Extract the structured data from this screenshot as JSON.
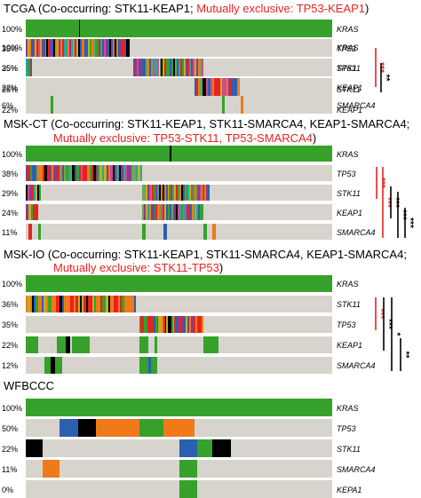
{
  "colors": {
    "background_cell": "#d6d4cc",
    "green": "#36a12b",
    "red": "#e8231f",
    "palette": [
      "#36a12b",
      "#e8231f",
      "#f07a1a",
      "#2d5fb0",
      "#000000",
      "#8b3b8b",
      "#c0b020",
      "#6aa84f"
    ]
  },
  "panels": [
    {
      "id": "tcga",
      "title_black": "TCGA (Co-occurring: STK11-KEAP1; ",
      "title_red": "Mutually exclusive: TP53-KEAP1",
      "title_tail": ")",
      "title_line2_red": "",
      "title_line2_tail": "",
      "rows": [
        {
          "pct": "100%",
          "gene": "KRAS"
        },
        {
          "pct": "35%",
          "gene": "TP53"
        },
        {
          "pct": "25%",
          "gene": "STK11"
        },
        {
          "pct": "22%",
          "gene": "KEAP1"
        },
        {
          "pct": "6%",
          "gene": "SMARCA4"
        }
      ],
      "significance": [
        {
          "label": "***",
          "color": "red",
          "from_row": 1,
          "to_row": 3
        },
        {
          "label": "**",
          "color": "black",
          "from_row": 2,
          "to_row": 3
        }
      ]
    },
    {
      "id": "msk-ct",
      "title_black": "MSK-CT (Co-occurring: STK11-KEAP1, STK11-SMARCA4, KEAP1-SMARCA4;",
      "title_red": "",
      "title_tail": "",
      "title_line2_red": "Mutually exclusive: TP53-STK11, TP53-SMARCA4",
      "title_line2_tail": ")",
      "rows": [
        {
          "pct": "100%",
          "gene": "KRAS"
        },
        {
          "pct": "38%",
          "gene": "TP53"
        },
        {
          "pct": "29%",
          "gene": "STK11"
        },
        {
          "pct": "24%",
          "gene": "KEAP1"
        },
        {
          "pct": "11%",
          "gene": "SMARCA4"
        }
      ],
      "significance": [
        {
          "label": "***",
          "color": "red",
          "from_row": 1,
          "to_row": 2
        },
        {
          "label": "***",
          "color": "red",
          "from_row": 1,
          "to_row": 4
        },
        {
          "label": "***",
          "color": "black",
          "from_row": 2,
          "to_row": 3
        },
        {
          "label": "***",
          "color": "black",
          "from_row": 2,
          "to_row": 4
        },
        {
          "label": "***",
          "color": "black",
          "from_row": 3,
          "to_row": 4
        }
      ]
    },
    {
      "id": "msk-io",
      "title_black": "MSK-IO (Co-occurring: STK11-KEAP1, STK11-SMARCA4, KEAP1-SMARCA4;",
      "title_red": "",
      "title_tail": "",
      "title_line2_red": "Mutually exclusive: STK11-TP53",
      "title_line2_tail": ")",
      "rows": [
        {
          "pct": "100%",
          "gene": "KRAS"
        },
        {
          "pct": "36%",
          "gene": "STK11"
        },
        {
          "pct": "35%",
          "gene": "TP53"
        },
        {
          "pct": "22%",
          "gene": "KEAP1"
        },
        {
          "pct": "12%",
          "gene": "SMARCA4"
        }
      ],
      "significance": [
        {
          "label": "***",
          "color": "red",
          "from_row": 1,
          "to_row": 2
        },
        {
          "label": "***",
          "color": "black",
          "from_row": 1,
          "to_row": 3
        },
        {
          "label": "*",
          "color": "black",
          "from_row": 1,
          "to_row": 4
        },
        {
          "label": "**",
          "color": "black",
          "from_row": 3,
          "to_row": 4
        }
      ]
    },
    {
      "id": "wfbccc",
      "title_black": "WFBCCC",
      "title_red": "",
      "title_tail": "",
      "title_line2_red": "",
      "title_line2_tail": "",
      "rows": [
        {
          "pct": "100%",
          "gene": "KRAS"
        },
        {
          "pct": "50%",
          "gene": "TP53"
        },
        {
          "pct": "22%",
          "gene": "STK11"
        },
        {
          "pct": "11%",
          "gene": "SMARCA4"
        },
        {
          "pct": "0%",
          "gene": "KEPA1"
        }
      ],
      "significance": []
    }
  ],
  "chart_data": [
    {
      "type": "heatmap",
      "title": "TCGA (Co-occurring: STK11-KEAP1; Mutually exclusive: TP53-KEAP1)",
      "genes": [
        "KRAS",
        "TP53",
        "STK11",
        "KEAP1",
        "SMARCA4"
      ],
      "mutation_frequency_percent": [
        100,
        35,
        25,
        22,
        6
      ],
      "significance": [
        {
          "pair": "TP53-KEAP1",
          "label": "***",
          "relationship": "mutually exclusive"
        },
        {
          "pair": "STK11-KEAP1",
          "label": "**",
          "relationship": "co-occurring"
        }
      ]
    },
    {
      "type": "heatmap",
      "title": "MSK-CT (Co-occurring: STK11-KEAP1, STK11-SMARCA4, KEAP1-SMARCA4; Mutually exclusive: TP53-STK11, TP53-SMARCA4)",
      "genes": [
        "KRAS",
        "TP53",
        "STK11",
        "KEAP1",
        "SMARCA4"
      ],
      "mutation_frequency_percent": [
        100,
        38,
        29,
        24,
        11
      ]
    },
    {
      "type": "heatmap",
      "title": "MSK-IO (Co-occurring: STK11-KEAP1, STK11-SMARCA4, KEAP1-SMARCA4; Mutually exclusive: STK11-TP53)",
      "genes": [
        "KRAS",
        "STK11",
        "TP53",
        "KEAP1",
        "SMARCA4"
      ],
      "mutation_frequency_percent": [
        100,
        36,
        35,
        22,
        12
      ]
    },
    {
      "type": "heatmap",
      "title": "WFBCCC",
      "genes": [
        "KRAS",
        "TP53",
        "STK11",
        "SMARCA4",
        "KEPA1"
      ],
      "mutation_frequency_percent": [
        100,
        50,
        22,
        11,
        0
      ]
    }
  ]
}
